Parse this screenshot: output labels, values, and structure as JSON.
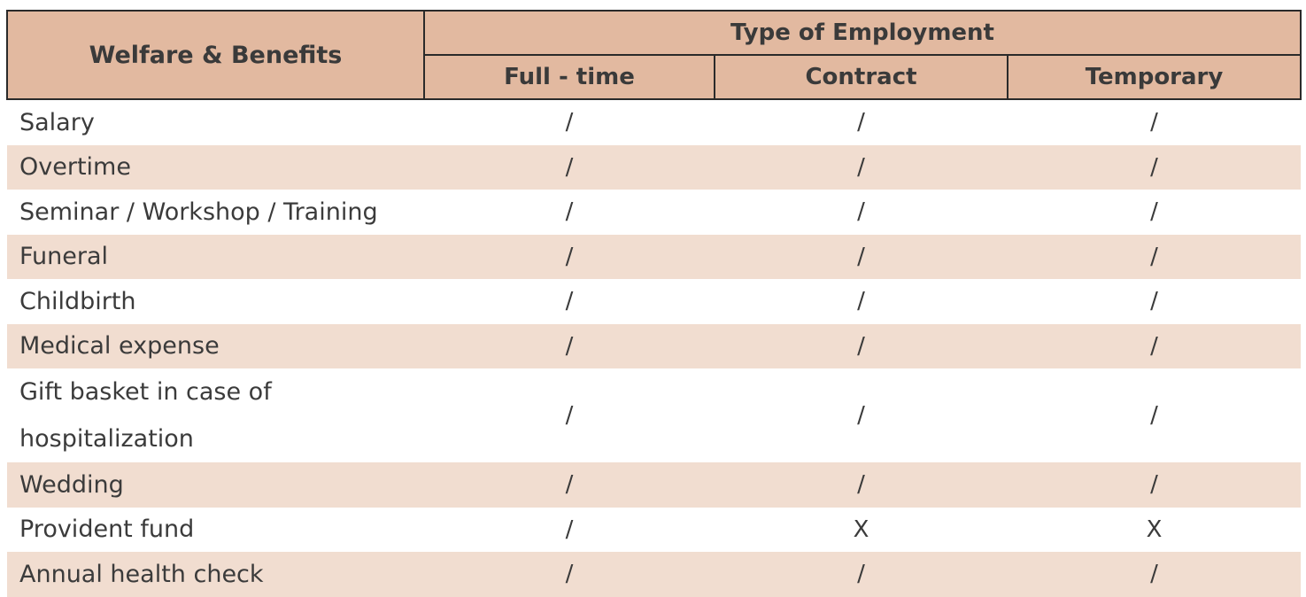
{
  "table": {
    "header": {
      "corner": "Welfare & Benefits",
      "group": "Type of Employment",
      "columns": [
        "Full - time",
        "Contract",
        "Temporary"
      ]
    },
    "rows": [
      {
        "label": "Salary",
        "values": [
          "/",
          "/",
          "/"
        ]
      },
      {
        "label": "Overtime",
        "values": [
          "/",
          "/",
          "/"
        ]
      },
      {
        "label": "Seminar / Workshop / Training",
        "values": [
          "/",
          "/",
          "/"
        ]
      },
      {
        "label": "Funeral",
        "values": [
          "/",
          "/",
          "/"
        ]
      },
      {
        "label": "Childbirth",
        "values": [
          "/",
          "/",
          "/"
        ]
      },
      {
        "label": "Medical expense",
        "values": [
          "/",
          "/",
          "/"
        ]
      },
      {
        "label_line1": "Gift basket in case of",
        "label_line2": "hospitalization",
        "values": [
          "/",
          "/",
          "/"
        ]
      },
      {
        "label": "Wedding",
        "values": [
          "/",
          "/",
          "/"
        ]
      },
      {
        "label": "Provident fund",
        "values": [
          "/",
          "X",
          "X"
        ]
      },
      {
        "label": "Annual health check",
        "values": [
          "/",
          "/",
          "/"
        ]
      }
    ]
  },
  "colors": {
    "header_bg": "#e2b9a0",
    "stripe_bg": "#f1ddd0",
    "border": "#2a2a2a",
    "text": "#3b3b3b"
  }
}
